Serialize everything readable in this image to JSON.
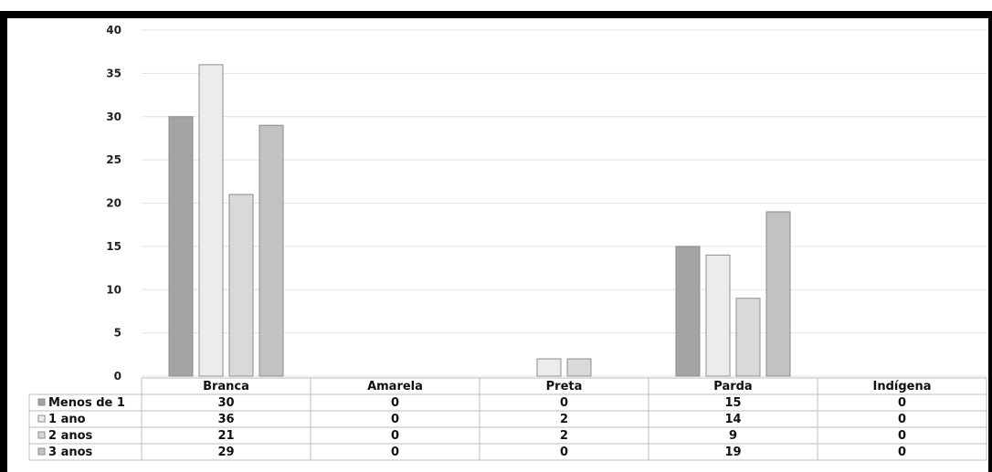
{
  "chart_data": {
    "type": "bar",
    "title": "",
    "xlabel": "",
    "ylabel": "",
    "ylim": [
      0,
      40
    ],
    "yticks": [
      0,
      5,
      10,
      15,
      20,
      25,
      30,
      35,
      40
    ],
    "grid": true,
    "legend": "data-table-left",
    "categories": [
      "Branca",
      "Amarela",
      "Preta",
      "Parda",
      "Indígena"
    ],
    "series": [
      {
        "name": "Menos de 1",
        "values": [
          30,
          0,
          0,
          15,
          0
        ],
        "color": "#a3a3a3"
      },
      {
        "name": "1 ano",
        "values": [
          36,
          0,
          2,
          14,
          0
        ],
        "color": "#ececec"
      },
      {
        "name": "2 anos",
        "values": [
          21,
          0,
          2,
          9,
          0
        ],
        "color": "#d9d9d9"
      },
      {
        "name": "3 anos",
        "values": [
          29,
          0,
          0,
          19,
          0
        ],
        "color": "#c2c2c2"
      }
    ]
  }
}
